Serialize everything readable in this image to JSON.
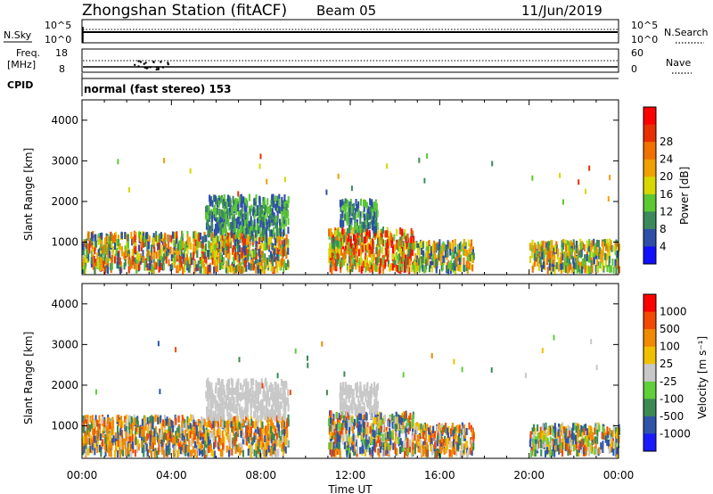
{
  "header": {
    "station": "Zhongshan Station (fitACF)",
    "beam": "Beam 05",
    "date": "11/Jun/2019"
  },
  "panels": {
    "nsky": {
      "left_label": "N.Sky",
      "right_label": "N.Search",
      "tick_top": "10^5",
      "tick_bottom": "10^0"
    },
    "freq": {
      "left_label_1": "Freq.",
      "left_label_2": "[MHz]",
      "tick_top": "18",
      "tick_bottom": "8",
      "right_tick_top": "60",
      "right_tick_bottom": "0",
      "right_label": "Nave"
    },
    "cpid": {
      "label": "CPID",
      "value": "normal (fast stereo) 153"
    }
  },
  "colors": {
    "power": [
      "#1010ff",
      "#2d4fa8",
      "#3b8a5c",
      "#5cc832",
      "#d8d800",
      "#f0a000",
      "#f07000",
      "#e83000",
      "#ff0000"
    ],
    "velocity": [
      "#ff0000",
      "#f24a00",
      "#f08a00",
      "#f0c000",
      "#c8c8c8",
      "#5fcf3a",
      "#3a8a52",
      "#2d55a8",
      "#1a1aff"
    ]
  },
  "chart_data": [
    {
      "type": "heatmap",
      "title": "Power",
      "xlabel": "Time UT",
      "ylabel": "Slant Range [km]",
      "xticks": [
        "00:00",
        "04:00",
        "08:00",
        "12:00",
        "16:00",
        "20:00",
        "00:00"
      ],
      "yticks": [
        "1000",
        "2000",
        "3000",
        "4000"
      ],
      "xlim_hours": [
        0,
        24
      ],
      "ylim_km": [
        200,
        4500
      ],
      "colorbar": {
        "label": "Power [dB]",
        "ticks": [
          "4",
          "8",
          "12",
          "16",
          "20",
          "24",
          "28"
        ],
        "range": [
          0,
          30
        ]
      },
      "echo_regions": [
        {
          "t0": 0.0,
          "t1": 9.2,
          "r0": 300,
          "r1": 1200,
          "level": "medium-high"
        },
        {
          "t0": 5.5,
          "t1": 9.2,
          "r0": 1200,
          "r1": 2100,
          "level": "low"
        },
        {
          "t0": 11.0,
          "t1": 14.8,
          "r0": 300,
          "r1": 1300,
          "level": "high"
        },
        {
          "t0": 11.5,
          "t1": 13.2,
          "r0": 1300,
          "r1": 2000,
          "level": "low"
        },
        {
          "t0": 14.8,
          "t1": 17.5,
          "r0": 300,
          "r1": 1000,
          "level": "medium"
        },
        {
          "t0": 20.0,
          "t1": 24.0,
          "r0": 300,
          "r1": 1000,
          "level": "medium"
        }
      ]
    },
    {
      "type": "heatmap",
      "title": "Velocity",
      "xlabel": "Time UT",
      "ylabel": "Slant Range [km]",
      "xticks": [
        "00:00",
        "04:00",
        "08:00",
        "12:00",
        "16:00",
        "20:00",
        "00:00"
      ],
      "yticks": [
        "1000",
        "2000",
        "3000",
        "4000"
      ],
      "xlim_hours": [
        0,
        24
      ],
      "ylim_km": [
        200,
        4500
      ],
      "colorbar": {
        "label": "Velocity [m s⁻¹]",
        "ticks": [
          "1000",
          "500",
          "100",
          "25",
          "-25",
          "-100",
          "-500",
          "-1000"
        ]
      },
      "echo_regions": [
        {
          "t0": 0.0,
          "t1": 9.2,
          "r0": 300,
          "r1": 1200,
          "level": "negative"
        },
        {
          "t0": 5.5,
          "t1": 9.2,
          "r0": 1200,
          "r1": 2100,
          "level": "ground-scatter"
        },
        {
          "t0": 11.0,
          "t1": 14.8,
          "r0": 300,
          "r1": 1300,
          "level": "mixed"
        },
        {
          "t0": 11.5,
          "t1": 13.2,
          "r0": 1300,
          "r1": 2000,
          "level": "ground-scatter"
        },
        {
          "t0": 14.8,
          "t1": 17.5,
          "r0": 300,
          "r1": 1000,
          "level": "negative"
        },
        {
          "t0": 20.0,
          "t1": 24.0,
          "r0": 300,
          "r1": 1000,
          "level": "mixed"
        }
      ]
    }
  ]
}
